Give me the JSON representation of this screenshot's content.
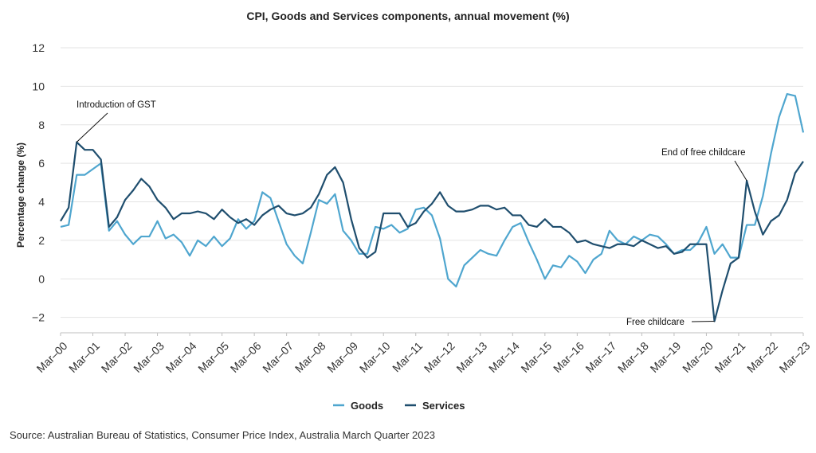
{
  "chart_data": {
    "type": "line",
    "title": "CPI, Goods and Services components, annual movement (%)",
    "ylabel": "Percentage change (%)",
    "xlabel": "",
    "ylim": [
      -2.8,
      12
    ],
    "yticks": [
      "−2",
      "0",
      "2",
      "4",
      "6",
      "8",
      "10",
      "12"
    ],
    "ytick_values": [
      -2,
      0,
      2,
      4,
      6,
      8,
      10,
      12
    ],
    "xticks": [
      "Mar–00",
      "Mar–01",
      "Mar–02",
      "Mar–03",
      "Mar–04",
      "Mar–05",
      "Mar–06",
      "Mar–07",
      "Mar–08",
      "Mar–09",
      "Mar–10",
      "Mar–11",
      "Mar–12",
      "Mar–13",
      "Mar–14",
      "Mar–15",
      "Mar–16",
      "Mar–17",
      "Mar–18",
      "Mar–19",
      "Mar–20",
      "Mar–21",
      "Mar–22",
      "Mar–23"
    ],
    "frequency": "quarterly",
    "grid": "horizontal",
    "legend_position": "bottom",
    "series": [
      {
        "name": "Goods",
        "color": "#4fa6cf",
        "values": [
          2.7,
          2.8,
          5.4,
          5.4,
          5.7,
          6.0,
          2.5,
          3.0,
          2.3,
          1.8,
          2.2,
          2.2,
          3.0,
          2.1,
          2.3,
          1.9,
          1.2,
          2.0,
          1.7,
          2.2,
          1.7,
          2.1,
          3.1,
          2.6,
          3.0,
          4.5,
          4.2,
          3.0,
          1.8,
          1.2,
          0.8,
          2.4,
          4.1,
          3.9,
          4.4,
          2.5,
          2.0,
          1.3,
          1.3,
          2.7,
          2.6,
          2.8,
          2.4,
          2.6,
          3.6,
          3.7,
          3.3,
          2.1,
          0.0,
          -0.4,
          0.7,
          1.1,
          1.5,
          1.3,
          1.2,
          2.0,
          2.7,
          2.9,
          1.9,
          1.0,
          0.0,
          0.7,
          0.6,
          1.2,
          0.9,
          0.3,
          1.0,
          1.3,
          2.5,
          2.0,
          1.8,
          2.2,
          2.0,
          2.3,
          2.2,
          1.8,
          1.3,
          1.5,
          1.5,
          1.9,
          2.7,
          1.3,
          1.8,
          1.1,
          1.1,
          2.8,
          2.8,
          4.3,
          6.5,
          8.4,
          9.6,
          9.5,
          7.6
        ]
      },
      {
        "name": "Services",
        "color": "#1f4e6e",
        "values": [
          3.0,
          3.7,
          7.1,
          6.7,
          6.7,
          6.2,
          2.7,
          3.2,
          4.1,
          4.6,
          5.2,
          4.8,
          4.1,
          3.7,
          3.1,
          3.4,
          3.4,
          3.5,
          3.4,
          3.1,
          3.6,
          3.2,
          2.9,
          3.1,
          2.8,
          3.3,
          3.6,
          3.8,
          3.4,
          3.3,
          3.4,
          3.7,
          4.4,
          5.4,
          5.8,
          5.0,
          3.1,
          1.6,
          1.1,
          1.4,
          3.4,
          3.4,
          3.4,
          2.7,
          2.9,
          3.5,
          3.9,
          4.5,
          3.8,
          3.5,
          3.5,
          3.6,
          3.8,
          3.8,
          3.6,
          3.7,
          3.3,
          3.3,
          2.8,
          2.7,
          3.1,
          2.7,
          2.7,
          2.4,
          1.9,
          2.0,
          1.8,
          1.7,
          1.6,
          1.8,
          1.8,
          1.7,
          2.0,
          1.8,
          1.6,
          1.7,
          1.3,
          1.4,
          1.8,
          1.8,
          1.8,
          -2.2,
          -0.6,
          0.8,
          1.1,
          5.1,
          3.5,
          2.3,
          3.0,
          3.3,
          4.1,
          5.5,
          6.1
        ]
      }
    ],
    "annotations": [
      {
        "text": "Introduction of GST",
        "index": 2,
        "series": "Services"
      },
      {
        "text": "End of free childcare",
        "index": 85,
        "series": "Services"
      },
      {
        "text": "Free childcare",
        "index": 81,
        "series": "Services"
      }
    ]
  },
  "source": "Source: Australian Bureau of Statistics, Consumer Price Index, Australia March Quarter 2023"
}
